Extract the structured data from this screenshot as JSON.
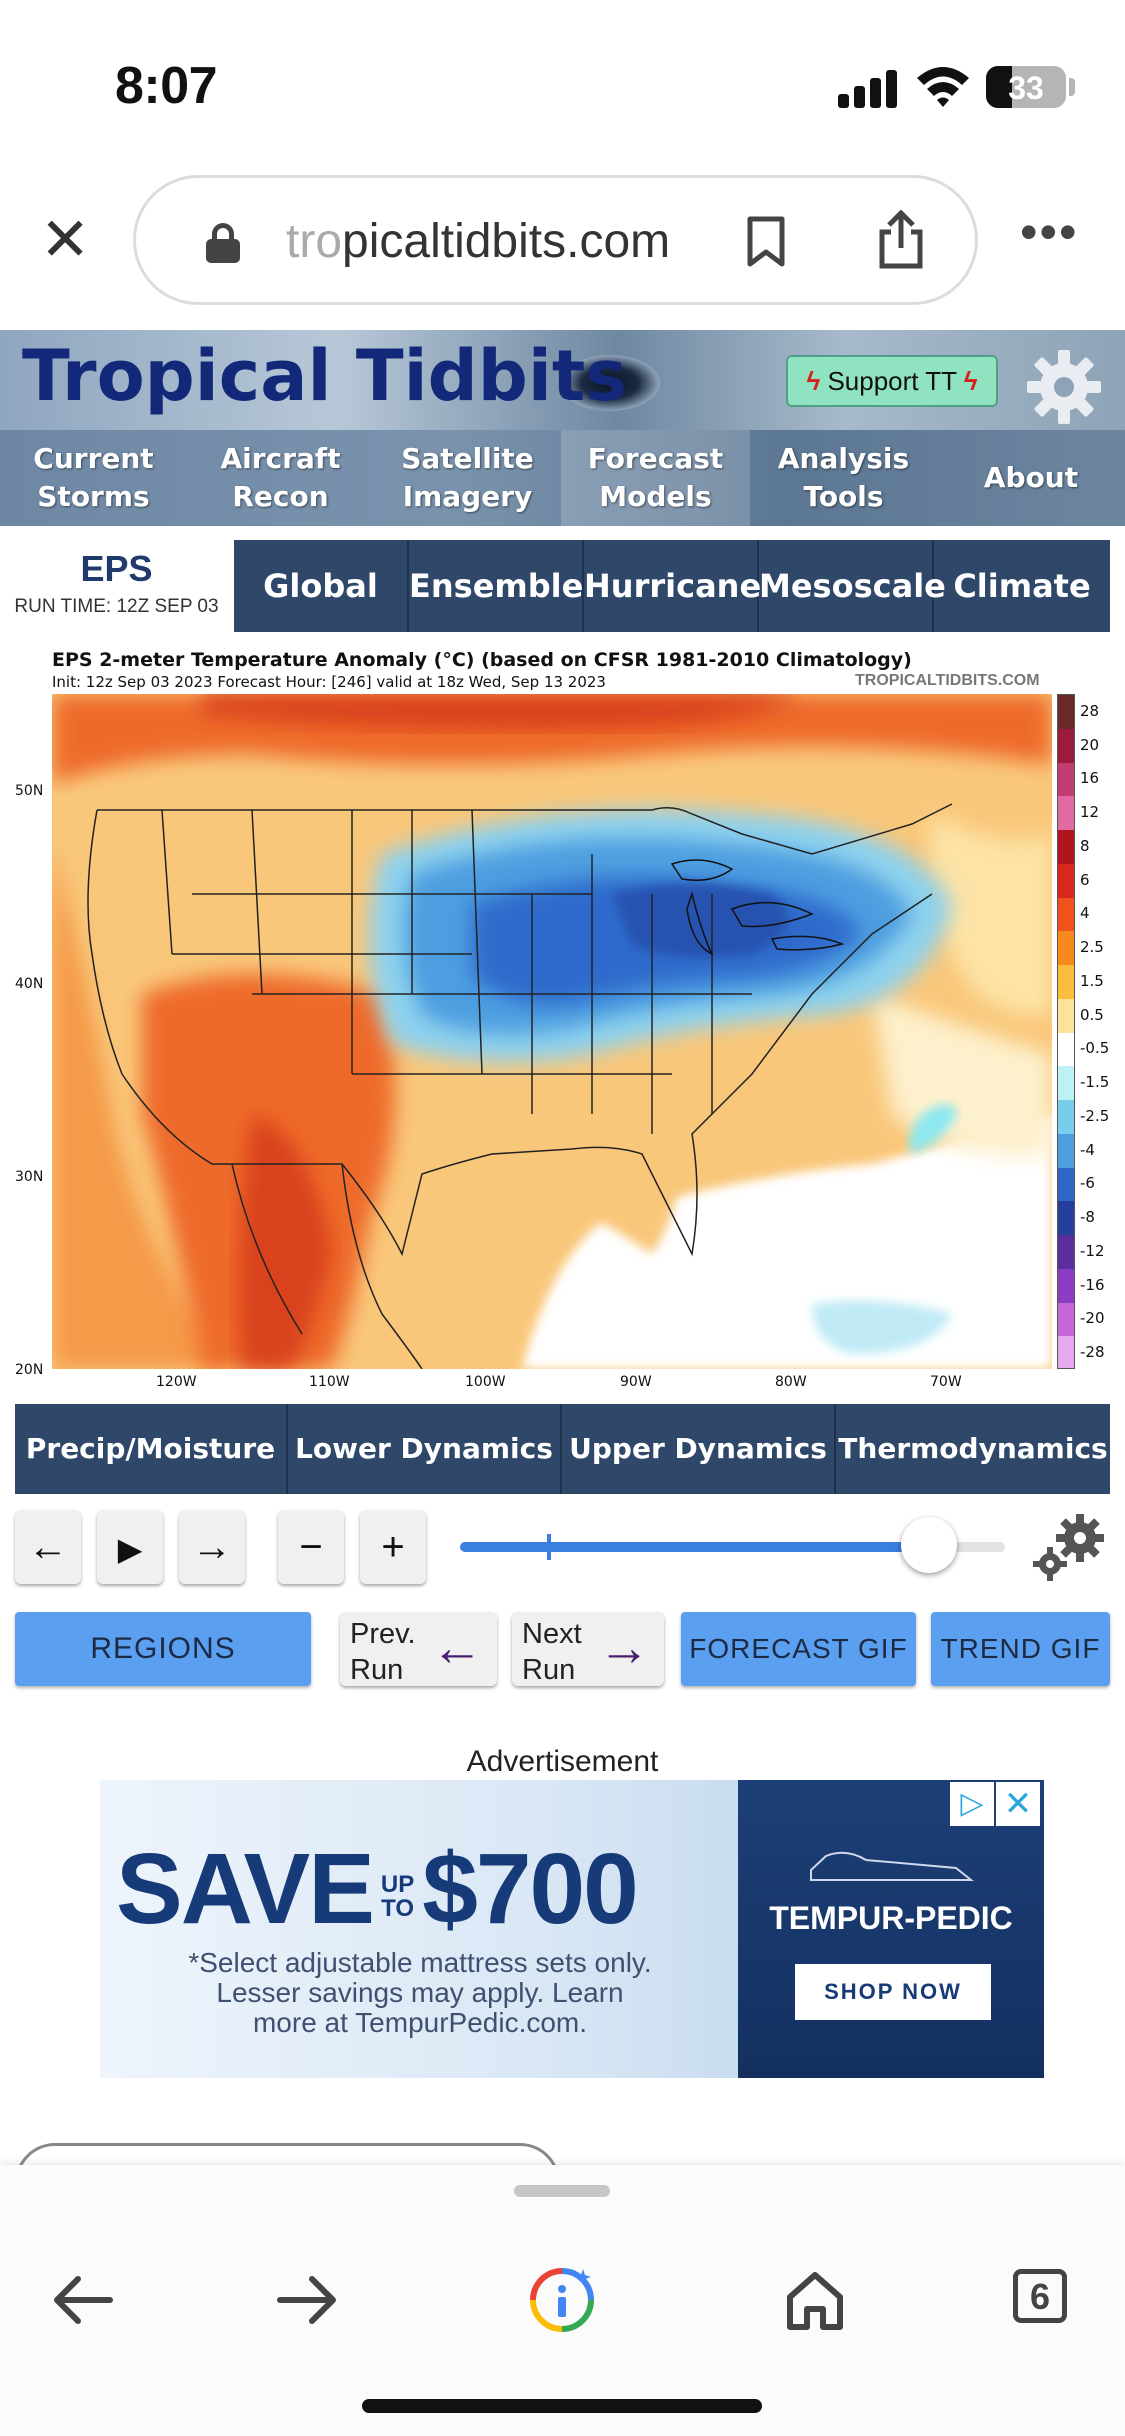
{
  "status_bar": {
    "time": "8:07",
    "battery": "33",
    "battery_level": 0.33
  },
  "browser": {
    "url_dim": "tro",
    "url_main": "picaltidbits.com",
    "icons": [
      "close-icon",
      "lock-icon",
      "bookmark-icon",
      "share-icon",
      "more-icon"
    ]
  },
  "header": {
    "logo_text": "Tropical Tidbits",
    "support_label": "Support TT",
    "nav": [
      {
        "line1": "Current",
        "line2": "Storms"
      },
      {
        "line1": "Aircraft",
        "line2": "Recon"
      },
      {
        "line1": "Satellite",
        "line2": "Imagery"
      },
      {
        "line1": "Forecast",
        "line2": "Models"
      },
      {
        "line1": "Analysis",
        "line2": "Tools"
      },
      {
        "line1": "About",
        "line2": ""
      }
    ]
  },
  "model": {
    "name": "EPS",
    "run_time": "RUN TIME: 12Z SEP 03",
    "categories": [
      "Global",
      "Ensemble",
      "Hurricane",
      "Mesoscale",
      "Climate"
    ]
  },
  "chart": {
    "title": "EPS 2-meter Temperature Anomaly (°C) (based on CFSR 1981-2010 Climatology)",
    "subtitle": "Init: 12z Sep 03 2023   Forecast Hour: [246]   valid at 18z Wed, Sep 13 2023",
    "credit": "TROPICALTIDBITS.COM",
    "lat_labels": [
      "50N",
      "40N",
      "30N",
      "20N"
    ],
    "lon_labels": [
      "120W",
      "110W",
      "100W",
      "90W",
      "80W",
      "70W"
    ],
    "colorbar_labels": [
      "28",
      "20",
      "16",
      "12",
      "8",
      "6",
      "4",
      "2.5",
      "1.5",
      "0.5",
      "-0.5",
      "-1.5",
      "-2.5",
      "-4",
      "-6",
      "-8",
      "-12",
      "-16",
      "-20",
      "-28"
    ],
    "colorbar_colors": [
      "#6b2a2a",
      "#9b1b3c",
      "#c23c73",
      "#e06aa3",
      "#b0141c",
      "#d8271c",
      "#f0521e",
      "#f7891e",
      "#fbbd3e",
      "#fde39a",
      "#ffffff",
      "#bdf2f5",
      "#79cdec",
      "#4e9ee2",
      "#2f67c4",
      "#243f9c",
      "#5b2ea0",
      "#8d3bc0",
      "#c468d8",
      "#e6a8ef"
    ]
  },
  "params": [
    "Precip/Moisture",
    "Lower Dynamics",
    "Upper Dynamics",
    "Thermodynamics"
  ],
  "controls": {
    "back": "←",
    "play": "▶",
    "forward": "→",
    "minus": "−",
    "plus": "+",
    "slider_fraction": 0.86,
    "slider_tick_fraction": 0.16
  },
  "actions": {
    "regions": "REGIONS",
    "prev_run_1": "Prev.",
    "prev_run_2": "Run",
    "prev_arrow": "←",
    "next_run_1": "Next",
    "next_run_2": "Run",
    "next_arrow": "→",
    "forecast_gif": "FORECAST GIF",
    "trend_gif": "TREND GIF"
  },
  "ad": {
    "label": "Advertisement",
    "save": "SAVE",
    "up": "UP",
    "to": "TO",
    "amount": "$700",
    "fine1": "*Select adjustable mattress sets only.",
    "fine2": "Lesser savings may apply. Learn",
    "fine3": "more at TempurPedic.com.",
    "brand": "TEMPUR-PEDIC",
    "shop": "SHOP NOW"
  },
  "toolbar": {
    "tabs": "6"
  }
}
